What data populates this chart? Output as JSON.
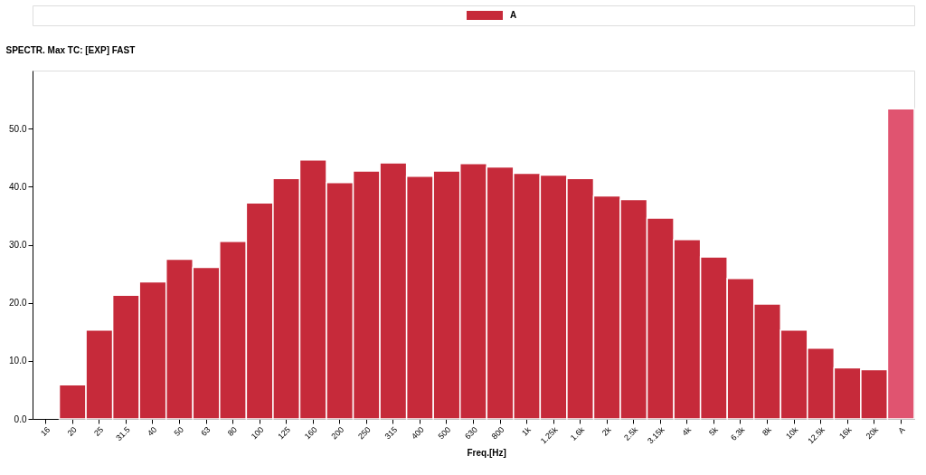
{
  "chart_data": {
    "type": "bar",
    "ylabel": "SPECTR. Max TC: [EXP] FAST",
    "xlabel": "Freq.[Hz]",
    "categories": [
      "16",
      "20",
      "25",
      "31.5",
      "40",
      "50",
      "63",
      "80",
      "100",
      "125",
      "160",
      "200",
      "250",
      "315",
      "400",
      "500",
      "630",
      "800",
      "1k",
      "1.25k",
      "1.6k",
      "2k",
      "2.5k",
      "3.15k",
      "4k",
      "5k",
      "6.3k",
      "8k",
      "10k",
      "12.5k",
      "16k",
      "20k",
      "A"
    ],
    "series": [
      {
        "name": "A",
        "color": "#c62a3a",
        "colors": [
          "#c62a3a",
          "#c62a3a",
          "#c62a3a",
          "#c62a3a",
          "#c62a3a",
          "#c62a3a",
          "#c62a3a",
          "#c62a3a",
          "#c62a3a",
          "#c62a3a",
          "#c62a3a",
          "#c62a3a",
          "#c62a3a",
          "#c62a3a",
          "#c62a3a",
          "#c62a3a",
          "#c62a3a",
          "#c62a3a",
          "#c62a3a",
          "#c62a3a",
          "#c62a3a",
          "#c62a3a",
          "#c62a3a",
          "#c62a3a",
          "#c62a3a",
          "#c62a3a",
          "#c62a3a",
          "#c62a3a",
          "#c62a3a",
          "#c62a3a",
          "#c62a3a",
          "#c62a3a",
          "#e05470"
        ],
        "values": [
          null,
          5.9,
          15.3,
          21.3,
          23.6,
          27.5,
          26.1,
          30.6,
          37.2,
          41.4,
          44.6,
          40.7,
          42.7,
          44.1,
          41.8,
          42.7,
          44.0,
          43.4,
          42.3,
          42.0,
          41.4,
          38.4,
          37.8,
          34.6,
          30.9,
          27.9,
          24.2,
          19.8,
          15.3,
          12.2,
          8.8,
          8.5,
          53.4
        ]
      }
    ],
    "ylim": [
      0,
      60
    ],
    "yticks": [
      {
        "value": 0,
        "label": "0.0"
      },
      {
        "value": 10,
        "label": "10.0"
      },
      {
        "value": 20,
        "label": "20.0"
      },
      {
        "value": 30,
        "label": "30.0"
      },
      {
        "value": 40,
        "label": "40.0"
      },
      {
        "value": 50,
        "label": "50.0"
      }
    ],
    "grid": false,
    "legend": "top"
  }
}
